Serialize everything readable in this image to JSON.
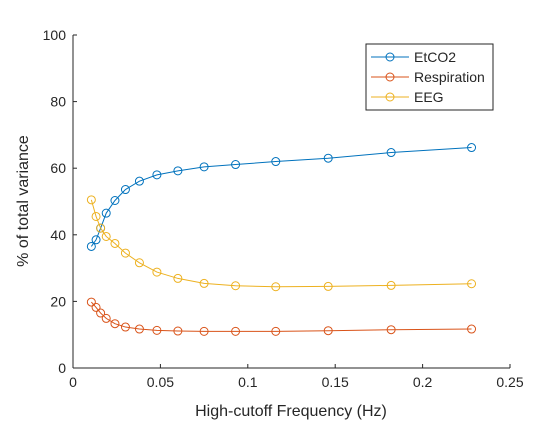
{
  "chart_data": {
    "type": "line",
    "xlabel": "High-cutoff Frequency (Hz)",
    "ylabel": "% of total variance",
    "xlim": [
      0,
      0.25
    ],
    "ylim": [
      0,
      100
    ],
    "xticks": [
      0,
      0.05,
      0.1,
      0.15,
      0.2,
      0.25
    ],
    "xtick_labels": [
      "0",
      "0.05",
      "0.1",
      "0.15",
      "0.2",
      "0.25"
    ],
    "yticks": [
      0,
      20,
      40,
      60,
      80,
      100
    ],
    "ytick_labels": [
      "0",
      "20",
      "40",
      "60",
      "80",
      "100"
    ],
    "grid": false,
    "legend_position": "top-right",
    "marker": "open-circle",
    "x": [
      0.0105,
      0.0132,
      0.0158,
      0.019,
      0.024,
      0.03,
      0.038,
      0.048,
      0.06,
      0.075,
      0.093,
      0.116,
      0.146,
      0.182,
      0.228
    ],
    "series": [
      {
        "name": "EtCO2",
        "color": "#0072BD",
        "values": [
          36.5,
          38.5,
          42.0,
          46.5,
          50.3,
          53.6,
          56.1,
          58.0,
          59.2,
          60.4,
          61.1,
          62.0,
          63.0,
          64.7,
          66.2
        ]
      },
      {
        "name": "Respiration",
        "color": "#D95319",
        "values": [
          19.8,
          18.2,
          16.5,
          14.9,
          13.3,
          12.3,
          11.7,
          11.3,
          11.1,
          11.0,
          11.0,
          11.0,
          11.2,
          11.5,
          11.7
        ]
      },
      {
        "name": "EEG",
        "color": "#EDB120",
        "values": [
          50.5,
          45.5,
          42.0,
          39.5,
          37.4,
          34.5,
          31.6,
          28.8,
          26.9,
          25.4,
          24.7,
          24.4,
          24.5,
          24.8,
          25.3
        ]
      }
    ]
  }
}
